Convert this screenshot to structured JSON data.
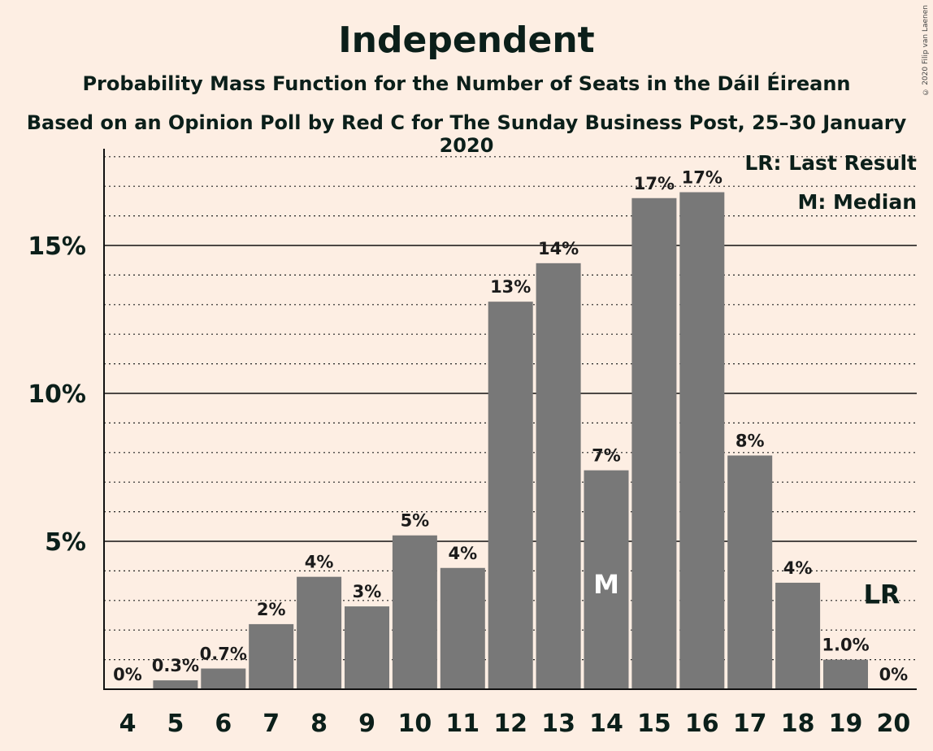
{
  "header": {
    "title": "Independent",
    "subtitle": "Probability Mass Function for the Number of Seats in the Dáil Éireann",
    "subtitle2": "Based on an Opinion Poll by Red C for The Sunday Business Post, 25–30 January 2020",
    "copyright": "© 2020 Filip van Laenen"
  },
  "legend": {
    "last_result": "LR: Last Result",
    "median": "M: Median"
  },
  "colors": {
    "background": "#fdeee3",
    "bar": "#787878",
    "text": "#0b1f1a"
  },
  "chart_data": {
    "type": "bar",
    "categories": [
      "4",
      "5",
      "6",
      "7",
      "8",
      "9",
      "10",
      "11",
      "12",
      "13",
      "14",
      "15",
      "16",
      "17",
      "18",
      "19",
      "20"
    ],
    "values": [
      0,
      0.3,
      0.7,
      2.2,
      3.8,
      2.8,
      5.2,
      4.1,
      13.1,
      14.4,
      7.4,
      16.6,
      16.8,
      7.9,
      3.6,
      1.0,
      0
    ],
    "value_labels": [
      "0%",
      "0.3%",
      "0.7%",
      "2%",
      "4%",
      "3%",
      "5%",
      "4%",
      "13%",
      "14%",
      "7%",
      "17%",
      "17%",
      "8%",
      "4%",
      "1.0%",
      "0%"
    ],
    "yticks": [
      {
        "value": 5,
        "label": "5%"
      },
      {
        "value": 10,
        "label": "10%"
      },
      {
        "value": 15,
        "label": "15%"
      }
    ],
    "ylim": [
      0,
      18.3
    ],
    "minor_grid_step": 1,
    "grid": true,
    "legend_position": "top-right",
    "median_category": "14",
    "median_marker": "M",
    "last_result_category": "19",
    "last_result_marker": "LR",
    "title": "Independent",
    "xlabel": "",
    "ylabel": ""
  }
}
